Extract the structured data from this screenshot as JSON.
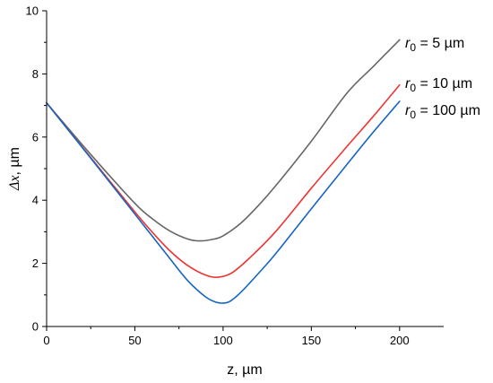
{
  "chart_data": {
    "type": "line",
    "title": "",
    "xlabel": "z, µm",
    "ylabel_symbol": "Δx",
    "ylabel_unit": ", µm",
    "xlim": [
      0,
      225
    ],
    "ylim": [
      0,
      10
    ],
    "xticks": [
      0,
      50,
      100,
      150,
      200
    ],
    "yticks": [
      0,
      2,
      4,
      6,
      8,
      10
    ],
    "xtick_labels": [
      "0",
      "50",
      "100",
      "150",
      "200"
    ],
    "ytick_labels": [
      "0",
      "2",
      "4",
      "6",
      "8",
      "10"
    ],
    "grid": false,
    "legend_placement": "inline-right",
    "series": [
      {
        "label_var": "r",
        "label_sub": "0",
        "label_value": " = 5 µm",
        "color": "#666666",
        "x": [
          0,
          25,
          50,
          60,
          70,
          80,
          87,
          95,
          100,
          110,
          120,
          130,
          150,
          170,
          185,
          200
        ],
        "y": [
          7.08,
          5.45,
          3.9,
          3.41,
          3.02,
          2.77,
          2.71,
          2.77,
          2.87,
          3.27,
          3.83,
          4.47,
          5.87,
          7.38,
          8.23,
          9.08
        ]
      },
      {
        "label_var": "r",
        "label_sub": "0",
        "label_value": " = 10 µm",
        "color": "#ee3333",
        "x": [
          0,
          25,
          50,
          60,
          70,
          80,
          90,
          97,
          105,
          115,
          130,
          150,
          170,
          185,
          200
        ],
        "y": [
          7.08,
          5.35,
          3.63,
          2.98,
          2.39,
          1.93,
          1.63,
          1.56,
          1.7,
          2.17,
          3.02,
          4.38,
          5.69,
          6.65,
          7.65
        ]
      },
      {
        "label_var": "r",
        "label_sub": "0",
        "label_value": " = 100 µm",
        "color": "#1565c0",
        "x": [
          0,
          25,
          50,
          60,
          70,
          80,
          90,
          96,
          100,
          104,
          110,
          120,
          130,
          150,
          170,
          185,
          200
        ],
        "y": [
          7.08,
          5.33,
          3.56,
          2.85,
          2.14,
          1.45,
          0.94,
          0.77,
          0.74,
          0.8,
          1.08,
          1.68,
          2.32,
          3.73,
          5.12,
          6.15,
          7.13
        ]
      }
    ]
  }
}
